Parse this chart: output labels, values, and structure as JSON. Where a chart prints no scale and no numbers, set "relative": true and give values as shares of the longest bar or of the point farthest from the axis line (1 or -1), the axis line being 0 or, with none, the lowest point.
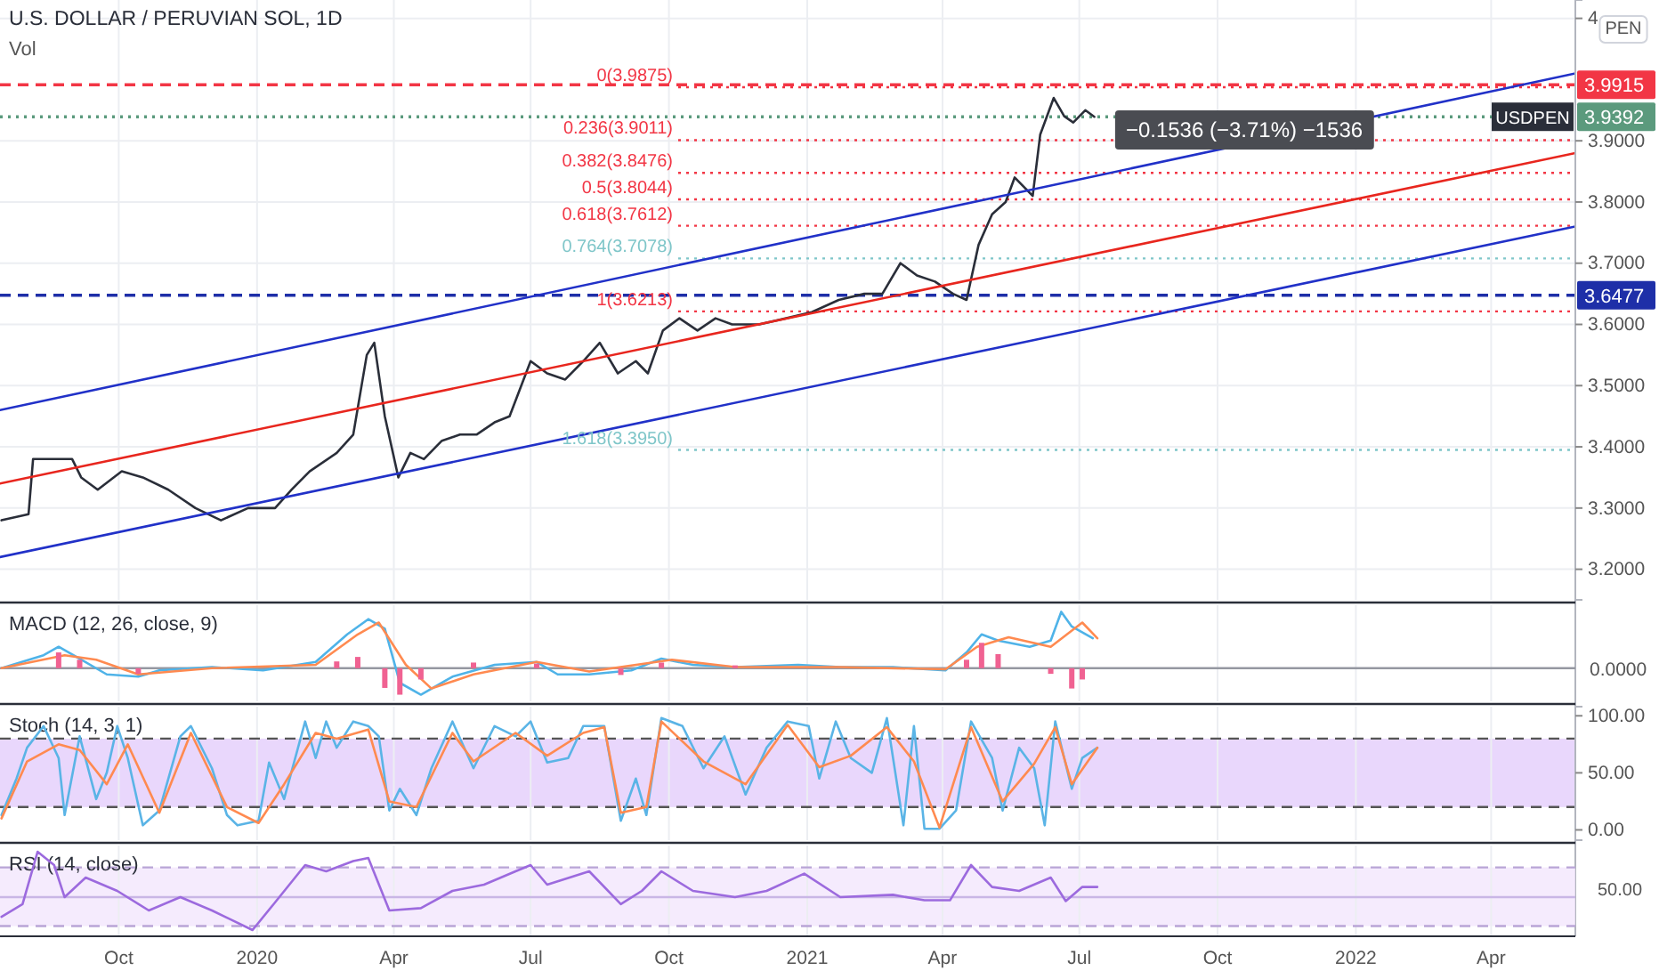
{
  "chart_data": [
    {
      "type": "line",
      "title": "U.S. DOLLAR / PERUVIAN SOL, 1D",
      "subtitle": "Vol",
      "xlim": [
        "2019-07-14",
        "2022-05-27"
      ],
      "xticks": [
        "2019-10-01",
        "2020-01-01",
        "2020-04-01",
        "2020-07-01",
        "2020-10-01",
        "2021-01-01",
        "2021-04-01",
        "2021-07-01",
        "2021-10-01",
        "2022-01-01",
        "2022-04-01"
      ],
      "ylim": [
        3.15,
        4.13
      ],
      "yticks": [
        {
          "value": 3.2,
          "label": "3.2000"
        },
        {
          "value": 3.3,
          "label": "3.3000"
        },
        {
          "value": 3.4,
          "label": "3.4000"
        },
        {
          "value": 3.5,
          "label": "3.5000"
        },
        {
          "value": 3.6,
          "label": "3.6000"
        },
        {
          "value": 3.7,
          "label": "3.7000"
        },
        {
          "value": 3.8,
          "label": "3.8000"
        },
        {
          "value": 3.9,
          "label": "3.9000"
        },
        {
          "value": 4.1,
          "label": "4"
        }
      ],
      "grid": true,
      "tick_labels": "y",
      "series": [
        {
          "name": "USDPEN",
          "color": "#2a2e39",
          "x": [
            "2019-07-15",
            "2019-08-02",
            "2019-08-05",
            "2019-08-13",
            "2019-08-31",
            "2019-09-06",
            "2019-09-17",
            "2019-10-03",
            "2019-10-17",
            "2019-11-03",
            "2019-11-21",
            "2019-12-08",
            "2019-12-26",
            "2020-01-13",
            "2020-01-24",
            "2020-02-05",
            "2020-02-23",
            "2020-03-05",
            "2020-03-14",
            "2020-03-19",
            "2020-03-26",
            "2020-04-04",
            "2020-04-12",
            "2020-04-21",
            "2020-05-03",
            "2020-05-15",
            "2020-05-26",
            "2020-06-07",
            "2020-06-17",
            "2020-07-01",
            "2020-07-12",
            "2020-07-24",
            "2020-08-05",
            "2020-08-16",
            "2020-08-28",
            "2020-09-09",
            "2020-09-17",
            "2020-09-27",
            "2020-10-08",
            "2020-10-20",
            "2020-11-01",
            "2020-11-12",
            "2020-11-30",
            "2020-12-18",
            "2021-01-04",
            "2021-01-22",
            "2021-02-08",
            "2021-02-20",
            "2021-03-04",
            "2021-03-15",
            "2021-03-27",
            "2021-04-08",
            "2021-04-17",
            "2021-04-25",
            "2021-05-04",
            "2021-05-13",
            "2021-05-19",
            "2021-05-31",
            "2021-06-05",
            "2021-06-14",
            "2021-06-21",
            "2021-06-27",
            "2021-07-05",
            "2021-07-11"
          ],
          "values": [
            3.28,
            3.29,
            3.38,
            3.38,
            3.38,
            3.35,
            3.33,
            3.36,
            3.35,
            3.33,
            3.3,
            3.28,
            3.3,
            3.3,
            3.33,
            3.36,
            3.39,
            3.42,
            3.55,
            3.57,
            3.45,
            3.35,
            3.39,
            3.38,
            3.41,
            3.42,
            3.42,
            3.44,
            3.45,
            3.54,
            3.52,
            3.51,
            3.54,
            3.57,
            3.52,
            3.54,
            3.52,
            3.59,
            3.61,
            3.59,
            3.61,
            3.6,
            3.6,
            3.61,
            3.62,
            3.64,
            3.65,
            3.65,
            3.7,
            3.68,
            3.67,
            3.65,
            3.64,
            3.73,
            3.78,
            3.8,
            3.84,
            3.81,
            3.91,
            3.97,
            3.94,
            3.93,
            3.95,
            3.9392
          ]
        },
        {
          "color": "#e8261e",
          "x": [
            "2019-07-14",
            "2022-05-27"
          ],
          "values": [
            3.34,
            3.88
          ]
        },
        {
          "color": "#2131c8",
          "x": [
            "2019-07-14",
            "2022-05-27"
          ],
          "values": [
            3.46,
            4.01
          ]
        },
        {
          "color": "#2131c8",
          "x": [
            "2019-07-14",
            "2022-05-27"
          ],
          "values": [
            3.22,
            3.76
          ]
        }
      ],
      "ref_lines": [
        {
          "axis": "y",
          "value": 3.9915,
          "label": "3.9915",
          "color": "#f23645",
          "line_style": "dashed"
        },
        {
          "axis": "y",
          "value": 3.9392,
          "label": "3.9392",
          "color": "#5b9a7d",
          "line_style": "dotted"
        },
        {
          "axis": "y",
          "value": 3.6477,
          "label": "3.6477",
          "color": "#1e2fa8",
          "line_style": "dashed"
        },
        {
          "axis": "y",
          "value": 3.9875,
          "label": "0(3.9875)",
          "color": "#f23645",
          "line_style": "dotted"
        },
        {
          "axis": "y",
          "value": 3.9011,
          "label": "0.236(3.9011)",
          "color": "#f23645",
          "line_style": "dotted"
        },
        {
          "axis": "y",
          "value": 3.8476,
          "label": "0.382(3.8476)",
          "color": "#f23645",
          "line_style": "dotted"
        },
        {
          "axis": "y",
          "value": 3.8044,
          "label": "0.5(3.8044)",
          "color": "#f23645",
          "line_style": "dotted"
        },
        {
          "axis": "y",
          "value": 3.7612,
          "label": "0.618(3.7612)",
          "color": "#f23645",
          "line_style": "dotted"
        },
        {
          "axis": "y",
          "value": 3.7078,
          "label": "0.764(3.7078)",
          "color": "#7fc6c9",
          "line_style": "dotted"
        },
        {
          "axis": "y",
          "value": 3.6213,
          "label": "1(3.6213)",
          "color": "#f23645",
          "line_style": "dotted"
        },
        {
          "axis": "y",
          "value": 3.395,
          "label": "1.618(3.3950)",
          "color": "#7fc6c9",
          "line_style": "dotted"
        }
      ],
      "annotations": [
        "−0.1536 (−3.71%) −1536",
        "PEN"
      ]
    },
    {
      "type": "line",
      "title": "MACD (12, 26, close, 9)",
      "relative": true,
      "xlim": [
        "2019-07-14",
        "2022-05-27"
      ],
      "xticks": [
        "2019-10-01",
        "2020-01-01",
        "2020-04-01",
        "2020-07-01",
        "2020-10-01",
        "2021-01-01",
        "2021-04-01",
        "2021-07-01",
        "2021-10-01",
        "2022-01-01",
        "2022-04-01"
      ],
      "grid": "x",
      "tick_labels": false,
      "series": [
        {
          "type": "bar",
          "color": "#f06292",
          "x": [
            "2019-08-22",
            "2019-09-05",
            "2019-10-14",
            "2020-02-23",
            "2020-03-08",
            "2020-03-26",
            "2020-04-05",
            "2020-04-19",
            "2020-05-24",
            "2020-07-05",
            "2020-08-30",
            "2020-09-26",
            "2020-11-14",
            "2021-04-17",
            "2021-04-27",
            "2021-05-08",
            "2021-06-12",
            "2021-06-26",
            "2021-07-03"
          ],
          "values": [
            0.28,
            0.15,
            -0.1,
            0.12,
            0.2,
            -0.35,
            -0.47,
            -0.2,
            0.1,
            0.08,
            -0.12,
            0.1,
            0.05,
            0.15,
            0.45,
            0.25,
            -0.1,
            -0.36,
            -0.2
          ]
        },
        {
          "color": "#4fb3e8",
          "x": [
            "2019-07-15",
            "2019-08-12",
            "2019-08-22",
            "2019-09-05",
            "2019-09-23",
            "2019-10-14",
            "2019-10-28",
            "2019-12-02",
            "2020-01-05",
            "2020-02-09",
            "2020-03-01",
            "2020-03-15",
            "2020-03-26",
            "2020-04-05",
            "2020-04-19",
            "2020-05-10",
            "2020-06-07",
            "2020-07-05",
            "2020-07-19",
            "2020-08-09",
            "2020-09-06",
            "2020-09-26",
            "2020-10-17",
            "2020-11-14",
            "2020-12-26",
            "2021-01-23",
            "2021-02-27",
            "2021-04-03",
            "2021-04-17",
            "2021-04-27",
            "2021-05-08",
            "2021-05-29",
            "2021-06-12",
            "2021-06-19",
            "2021-06-26",
            "2021-07-10"
          ],
          "values": [
            0,
            0.23,
            0.38,
            0.17,
            -0.11,
            -0.15,
            -0.04,
            0.02,
            -0.04,
            0.11,
            0.6,
            0.87,
            0.7,
            -0.26,
            -0.47,
            -0.15,
            0.06,
            0.11,
            -0.11,
            -0.11,
            -0.04,
            0.17,
            0.06,
            0.02,
            0.06,
            0.02,
            0.02,
            -0.04,
            0.28,
            0.6,
            0.49,
            0.38,
            0.49,
            1,
            0.74,
            0.53
          ]
        },
        {
          "color": "#ff8a50",
          "x": [
            "2019-07-15",
            "2019-08-26",
            "2019-09-16",
            "2019-10-14",
            "2019-12-02",
            "2020-02-09",
            "2020-03-08",
            "2020-03-22",
            "2020-04-09",
            "2020-04-26",
            "2020-05-24",
            "2020-07-05",
            "2020-08-09",
            "2020-10-03",
            "2020-11-14",
            "2021-01-23",
            "2021-04-03",
            "2021-04-24",
            "2021-05-15",
            "2021-06-12",
            "2021-07-03",
            "2021-07-13"
          ],
          "values": [
            0,
            0.23,
            0.15,
            -0.11,
            0,
            0.06,
            0.6,
            0.81,
            0.06,
            -0.36,
            -0.11,
            0.11,
            -0.06,
            0.15,
            0.02,
            0.02,
            -0.02,
            0.38,
            0.55,
            0.38,
            0.81,
            0.53
          ]
        }
      ],
      "ref_lines": [
        {
          "axis": "y",
          "value": 0,
          "label": "0.0000"
        }
      ]
    },
    {
      "type": "line",
      "title": "Stoch (14, 3, 1)",
      "xlim": [
        "2019-07-14",
        "2022-05-27"
      ],
      "xticks": [
        "2019-10-01",
        "2020-01-01",
        "2020-04-01",
        "2020-07-01",
        "2020-10-01",
        "2021-01-01",
        "2021-04-01",
        "2021-07-01",
        "2021-10-01",
        "2022-01-01",
        "2022-04-01"
      ],
      "ylim": [
        -9,
        108
      ],
      "yticks": [
        {
          "value": 0,
          "label": "0.00"
        },
        {
          "value": 50,
          "label": "50.00"
        },
        {
          "value": 100,
          "label": "100.00"
        }
      ],
      "grid": "x",
      "tick_labels": "y",
      "bands": [
        {
          "axis": "y",
          "from": 20,
          "to": 80,
          "color": "#e4cdfb"
        }
      ],
      "ref_lines": [
        {
          "axis": "y",
          "value": 80,
          "color": "#555555",
          "line_style": "dashed"
        },
        {
          "axis": "y",
          "value": 20,
          "color": "#555555",
          "line_style": "dashed"
        }
      ],
      "series": [
        {
          "color": "#5ab4e6",
          "x": [
            "2019-07-15",
            "2019-07-25",
            "2019-08-01",
            "2019-08-12",
            "2019-08-22",
            "2019-08-26",
            "2019-09-05",
            "2019-09-16",
            "2019-09-23",
            "2019-09-30",
            "2019-10-07",
            "2019-10-17",
            "2019-10-28",
            "2019-11-11",
            "2019-11-18",
            "2019-12-02",
            "2019-12-12",
            "2019-12-19",
            "2020-01-02",
            "2020-01-09",
            "2020-01-19",
            "2020-02-02",
            "2020-02-09",
            "2020-02-16",
            "2020-02-23",
            "2020-03-05",
            "2020-03-15",
            "2020-03-22",
            "2020-03-29",
            "2020-04-05",
            "2020-04-16",
            "2020-04-26",
            "2020-05-10",
            "2020-05-24",
            "2020-06-07",
            "2020-06-21",
            "2020-07-01",
            "2020-07-12",
            "2020-07-26",
            "2020-08-05",
            "2020-08-19",
            "2020-08-30",
            "2020-09-09",
            "2020-09-16",
            "2020-09-26",
            "2020-10-10",
            "2020-10-24",
            "2020-11-07",
            "2020-11-21",
            "2020-12-05",
            "2020-12-19",
            "2021-01-02",
            "2021-01-09",
            "2021-01-20",
            "2021-01-30",
            "2021-02-13",
            "2021-02-23",
            "2021-03-06",
            "2021-03-13",
            "2021-03-20",
            "2021-03-30",
            "2021-04-10",
            "2021-04-20",
            "2021-05-04",
            "2021-05-11",
            "2021-05-22",
            "2021-06-01",
            "2021-06-08",
            "2021-06-15",
            "2021-06-26",
            "2021-07-03",
            "2021-07-13"
          ],
          "values": [
            13,
            45,
            72,
            91,
            63,
            13,
            82,
            27,
            50,
            91,
            63,
            4,
            17,
            82,
            91,
            54,
            13,
            4,
            8,
            59,
            27,
            95,
            63,
            95,
            72,
            95,
            91,
            82,
            17,
            36,
            13,
            54,
            95,
            54,
            91,
            82,
            95,
            59,
            63,
            91,
            91,
            8,
            45,
            13,
            98,
            91,
            54,
            82,
            31,
            72,
            95,
            91,
            45,
            95,
            63,
            50,
            98,
            4,
            91,
            1,
            1,
            17,
            95,
            63,
            17,
            72,
            54,
            4,
            95,
            36,
            63,
            72
          ]
        },
        {
          "color": "#ff8a50",
          "x": [
            "2019-07-15",
            "2019-08-01",
            "2019-08-22",
            "2019-09-05",
            "2019-09-23",
            "2019-10-07",
            "2019-10-28",
            "2019-11-18",
            "2019-12-12",
            "2020-01-02",
            "2020-01-19",
            "2020-02-09",
            "2020-02-23",
            "2020-03-15",
            "2020-03-29",
            "2020-04-16",
            "2020-05-10",
            "2020-05-24",
            "2020-06-21",
            "2020-07-12",
            "2020-08-05",
            "2020-08-19",
            "2020-08-30",
            "2020-09-16",
            "2020-09-26",
            "2020-10-24",
            "2020-11-21",
            "2020-12-19",
            "2021-01-09",
            "2021-01-30",
            "2021-02-23",
            "2021-03-13",
            "2021-03-30",
            "2021-04-20",
            "2021-05-11",
            "2021-06-01",
            "2021-06-15",
            "2021-06-26",
            "2021-07-13"
          ],
          "values": [
            10,
            60,
            75,
            70,
            40,
            75,
            15,
            85,
            20,
            6,
            40,
            85,
            80,
            88,
            25,
            20,
            85,
            60,
            85,
            65,
            85,
            90,
            15,
            20,
            95,
            60,
            40,
            92,
            55,
            65,
            90,
            60,
            2,
            90,
            25,
            58,
            90,
            40,
            72
          ]
        }
      ]
    },
    {
      "type": "line",
      "title": "RSI (14, close)",
      "relative": true,
      "annotations": [
        "50.00"
      ],
      "xlim": [
        "2019-07-14",
        "2022-05-27"
      ],
      "xticks": [
        {
          "value": "2019-10-01",
          "label": "Oct"
        },
        {
          "value": "2020-01-01",
          "label": "2020"
        },
        {
          "value": "2020-04-01",
          "label": "Apr"
        },
        {
          "value": "2020-07-01",
          "label": "Jul"
        },
        {
          "value": "2020-10-01",
          "label": "Oct"
        },
        {
          "value": "2021-01-01",
          "label": "2021"
        },
        {
          "value": "2021-04-01",
          "label": "Apr"
        },
        {
          "value": "2021-07-01",
          "label": "Jul"
        },
        {
          "value": "2021-10-01",
          "label": "Oct"
        },
        {
          "value": "2022-01-01",
          "label": "2022"
        },
        {
          "value": "2022-04-01",
          "label": "Apr"
        }
      ],
      "grid": "x",
      "tick_labels": "x",
      "bands": [
        {
          "axis": "y",
          "from": 0.05,
          "to": 0.8,
          "color": "#f3e6fc"
        }
      ],
      "ref_lines": [
        {
          "axis": "y",
          "value": 0.42,
          "color": "#c9b6e6"
        },
        {
          "axis": "y",
          "value": 0.8,
          "color": "#b9a5d6",
          "line_style": "dashed"
        },
        {
          "axis": "y",
          "value": 0.05,
          "color": "#b9a5d6",
          "line_style": "dashed"
        }
      ],
      "series": [
        {
          "color": "#9c6ade",
          "x": [
            "2019-07-15",
            "2019-07-29",
            "2019-08-08",
            "2019-08-19",
            "2019-08-26",
            "2019-09-09",
            "2019-09-30",
            "2019-10-21",
            "2019-11-11",
            "2019-12-02",
            "2019-12-29",
            "2020-01-12",
            "2020-02-02",
            "2020-02-16",
            "2020-03-05",
            "2020-03-15",
            "2020-03-29",
            "2020-04-19",
            "2020-05-10",
            "2020-05-31",
            "2020-06-21",
            "2020-07-01",
            "2020-07-12",
            "2020-08-09",
            "2020-08-30",
            "2020-09-13",
            "2020-09-26",
            "2020-10-17",
            "2020-11-14",
            "2020-12-05",
            "2020-12-30",
            "2021-01-23",
            "2021-02-27",
            "2021-03-20",
            "2021-04-06",
            "2021-04-20",
            "2021-05-04",
            "2021-05-22",
            "2021-06-12",
            "2021-06-22",
            "2021-07-03",
            "2021-07-13"
          ],
          "values": [
            0.17,
            0.33,
            1,
            0.83,
            0.42,
            0.67,
            0.5,
            0.25,
            0.42,
            0.25,
            0,
            0.33,
            0.83,
            0.75,
            0.88,
            0.92,
            0.25,
            0.28,
            0.5,
            0.58,
            0.75,
            0.83,
            0.58,
            0.75,
            0.33,
            0.5,
            0.75,
            0.5,
            0.42,
            0.5,
            0.72,
            0.42,
            0.45,
            0.38,
            0.38,
            0.83,
            0.55,
            0.5,
            0.67,
            0.37,
            0.55,
            0.55
          ]
        }
      ]
    }
  ]
}
